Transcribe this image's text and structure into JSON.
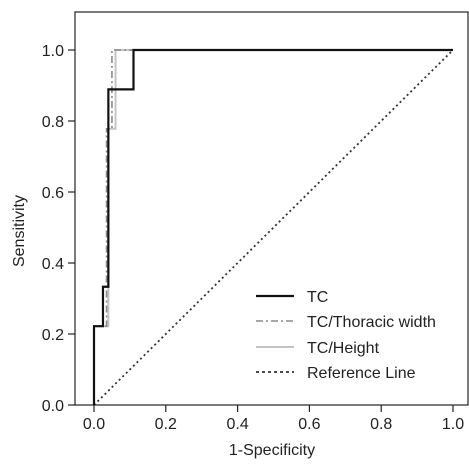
{
  "chart_data": {
    "type": "line",
    "xlabel": "1-Specificity",
    "ylabel": "Sensitivity",
    "xlim": [
      0.0,
      1.0
    ],
    "ylim": [
      0.0,
      1.0
    ],
    "x_ticks": [
      "0.0",
      "0.2",
      "0.4",
      "0.6",
      "0.8",
      "1.0"
    ],
    "y_ticks": [
      "0.0",
      "0.2",
      "0.4",
      "0.6",
      "0.8",
      "1.0"
    ],
    "grid": false,
    "legend_position": "bottom-right",
    "series": [
      {
        "name": "TC",
        "color": "#111111",
        "style": "solid",
        "x": [
          0.0,
          0.0,
          0.025,
          0.025,
          0.04,
          0.04,
          0.11,
          0.11,
          1.0
        ],
        "y": [
          0.0,
          0.222,
          0.222,
          0.333,
          0.333,
          0.889,
          0.889,
          1.0,
          1.0
        ]
      },
      {
        "name": "TC/Thoracic width",
        "color": "#8a8a8a",
        "style": "dashdot",
        "x": [
          0.0,
          0.0,
          0.035,
          0.035,
          0.05,
          0.05,
          1.0
        ],
        "y": [
          0.0,
          0.222,
          0.222,
          0.778,
          0.778,
          1.0,
          1.0
        ]
      },
      {
        "name": "TC/Height",
        "color": "#c4c4c4",
        "style": "solid",
        "x": [
          0.0,
          0.0,
          0.04,
          0.04,
          0.06,
          0.06,
          1.0
        ],
        "y": [
          0.0,
          0.222,
          0.222,
          0.778,
          0.778,
          1.0,
          1.0
        ]
      },
      {
        "name": "Reference Line",
        "color": "#333333",
        "style": "dotted",
        "x": [
          0.0,
          1.0
        ],
        "y": [
          0.0,
          1.0
        ]
      }
    ]
  }
}
